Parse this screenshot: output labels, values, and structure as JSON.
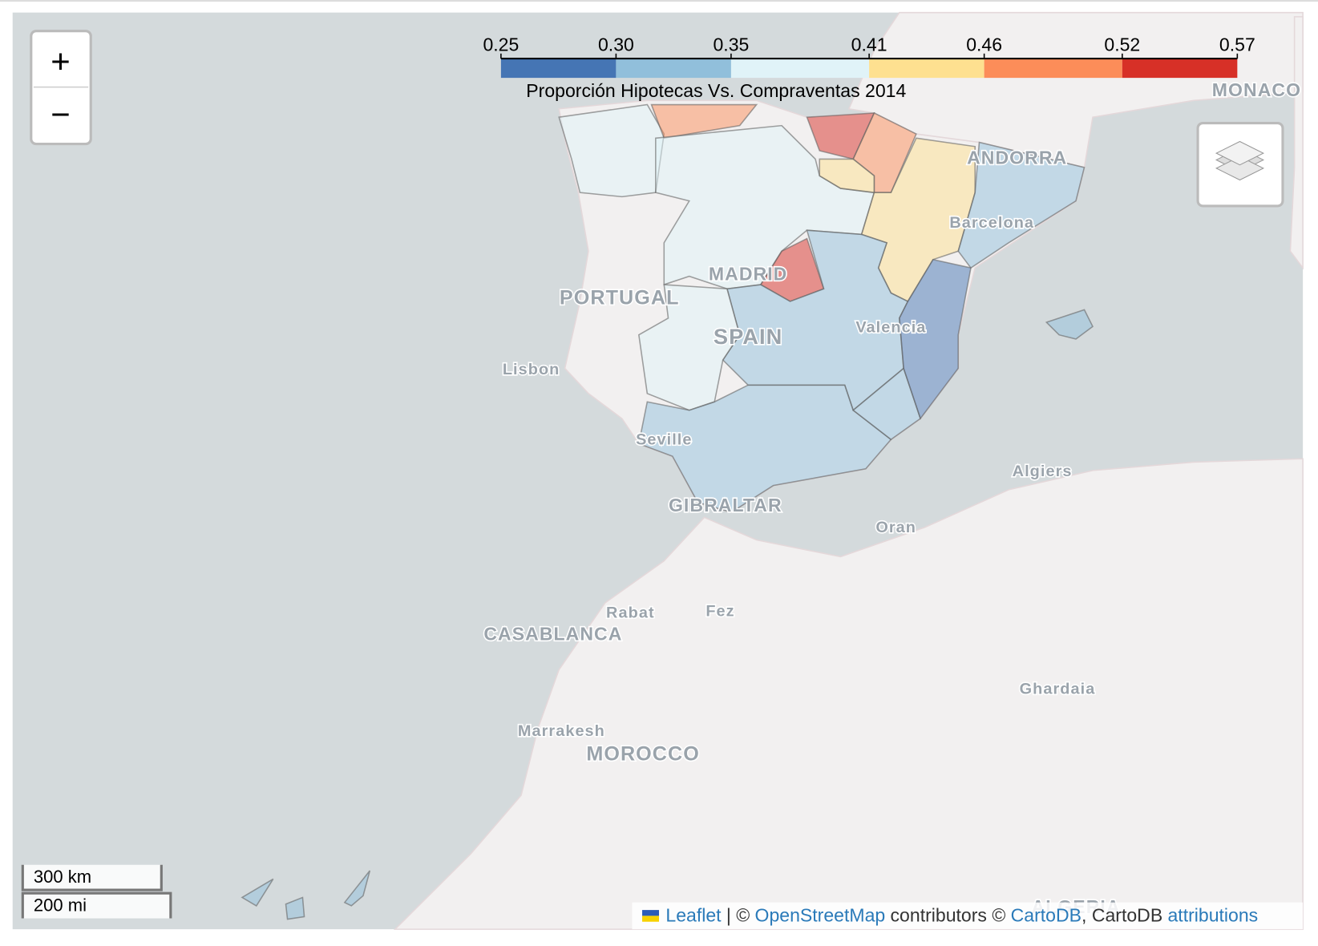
{
  "chart_data": {
    "type": "choropleth",
    "title": "Proporción Hipotecas Vs. Compraventas 2014",
    "colorbar": {
      "ticks": [
        0.25,
        {
          "value": 0.3,
          "label": "0.30"
        },
        0.35,
        0.41,
        0.46,
        0.52,
        0.57
      ],
      "colors": [
        "#4575b4",
        "#91bfdb",
        "#e0f3f8",
        "#fee090",
        "#fc8d59",
        "#d73027"
      ]
    },
    "region_values": [
      0.37,
      0.47,
      0.37,
      0.53,
      0.48,
      0.43,
      0.43,
      0.32,
      0.53,
      0.33,
      0.37,
      0.33,
      0.33,
      0.29,
      0.33,
      0.33,
      0.33,
      0.33
    ],
    "fill_opacity": 0.5
  },
  "map_labels": [
    "PORTUGAL",
    "SPAIN",
    "MADRID",
    "Lisbon",
    "Barcelona",
    "Valencia",
    "Seville",
    "GIBRALTAR",
    "ANDORRA",
    "MONACO",
    "Algiers",
    "Oran",
    "Rabat",
    "Fez",
    "CASABLANCA",
    "Marrakesh",
    "MOROCCO",
    "Ghardaia",
    "ALGERIA"
  ],
  "controls": {
    "zoom_in": "+",
    "zoom_out": "−"
  },
  "scale": [
    "300 km",
    "200 mi"
  ],
  "attribution": [
    "Leaflet",
    "| ©",
    "OpenStreetMap",
    "contributors ©",
    "CartoDB",
    ", CartoDB",
    "attributions"
  ]
}
